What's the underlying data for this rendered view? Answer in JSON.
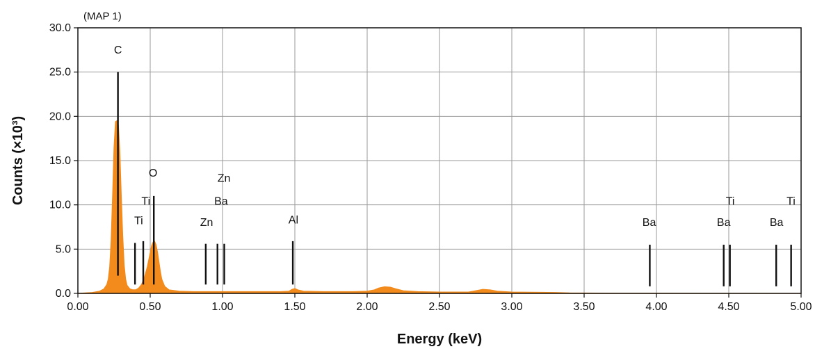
{
  "chart_data": {
    "type": "area",
    "map_label": "(MAP 1)",
    "xlabel": "Energy (keV)",
    "ylabel": "Counts (×10³)",
    "xlim": [
      0.0,
      5.0
    ],
    "ylim": [
      0.0,
      30.0
    ],
    "x_ticks": [
      "0.00",
      "0.50",
      "1.00",
      "1.50",
      "2.00",
      "2.50",
      "3.00",
      "3.50",
      "4.00",
      "4.50",
      "5.00"
    ],
    "y_ticks": [
      "0.0",
      "5.0",
      "10.0",
      "15.0",
      "20.0",
      "25.0",
      "30.0"
    ],
    "grid": true,
    "spectrum_color": "#f28a1c",
    "spectrum": {
      "x": [
        0.0,
        0.05,
        0.1,
        0.15,
        0.18,
        0.2,
        0.21,
        0.22,
        0.23,
        0.24,
        0.25,
        0.26,
        0.27,
        0.28,
        0.29,
        0.3,
        0.31,
        0.32,
        0.33,
        0.34,
        0.36,
        0.38,
        0.4,
        0.42,
        0.44,
        0.46,
        0.48,
        0.5,
        0.51,
        0.52,
        0.53,
        0.54,
        0.55,
        0.56,
        0.57,
        0.58,
        0.6,
        0.63,
        0.7,
        0.8,
        0.9,
        1.0,
        1.2,
        1.4,
        1.46,
        1.48,
        1.5,
        1.52,
        1.56,
        1.7,
        1.9,
        2.0,
        2.05,
        2.08,
        2.12,
        2.16,
        2.2,
        2.25,
        2.35,
        2.5,
        2.7,
        2.75,
        2.8,
        2.85,
        2.9,
        3.0,
        3.2,
        3.3,
        3.4,
        3.6,
        4.0,
        4.5,
        5.0
      ],
      "y": [
        0.0,
        0.05,
        0.1,
        0.25,
        0.5,
        1.0,
        1.6,
        3.0,
        6.0,
        11.0,
        16.5,
        19.4,
        19.5,
        19.0,
        16.0,
        11.0,
        6.5,
        3.2,
        1.6,
        0.9,
        0.5,
        0.4,
        0.4,
        0.6,
        1.0,
        1.8,
        3.0,
        4.6,
        5.4,
        5.8,
        5.9,
        5.5,
        4.7,
        3.6,
        2.5,
        1.6,
        0.8,
        0.4,
        0.25,
        0.2,
        0.2,
        0.2,
        0.2,
        0.2,
        0.25,
        0.45,
        0.55,
        0.4,
        0.25,
        0.2,
        0.2,
        0.25,
        0.4,
        0.6,
        0.75,
        0.7,
        0.5,
        0.3,
        0.2,
        0.15,
        0.15,
        0.3,
        0.45,
        0.4,
        0.25,
        0.15,
        0.12,
        0.1,
        0.05,
        0.03,
        0.02,
        0.01,
        0.0
      ]
    },
    "element_markers": [
      {
        "element": "C",
        "energy": 0.277,
        "top": 25.0,
        "bottom": 2.0
      },
      {
        "element": "Ti",
        "energy": 0.395,
        "top": 5.7,
        "bottom": 1.0
      },
      {
        "element": "Ti",
        "energy": 0.452,
        "top": 5.9,
        "bottom": 1.0
      },
      {
        "element": "O",
        "energy": 0.525,
        "top": 11.0,
        "bottom": 1.0
      },
      {
        "element": "Zn",
        "energy": 0.884,
        "top": 5.6,
        "bottom": 1.0
      },
      {
        "element": "Ba",
        "energy": 0.965,
        "top": 5.6,
        "bottom": 1.0
      },
      {
        "element": "Zn",
        "energy": 1.012,
        "top": 5.6,
        "bottom": 1.0
      },
      {
        "element": "Al",
        "energy": 1.486,
        "top": 5.9,
        "bottom": 1.0
      },
      {
        "element": "Ba",
        "energy": 3.954,
        "top": 5.5,
        "bottom": 0.8
      },
      {
        "element": "Ba",
        "energy": 4.465,
        "top": 5.5,
        "bottom": 0.8
      },
      {
        "element": "Ti",
        "energy": 4.508,
        "top": 5.5,
        "bottom": 0.8
      },
      {
        "element": "Ba",
        "energy": 4.828,
        "top": 5.5,
        "bottom": 0.8
      },
      {
        "element": "Ti",
        "energy": 4.931,
        "top": 5.5,
        "bottom": 0.8
      }
    ],
    "element_labels": [
      {
        "text": "C",
        "energy": 0.277,
        "y": 27.1
      },
      {
        "text": "Ti",
        "energy": 0.42,
        "y": 7.8
      },
      {
        "text": "Ti",
        "energy": 0.47,
        "y": 10.0
      },
      {
        "text": "O",
        "energy": 0.52,
        "y": 13.2
      },
      {
        "text": "Zn",
        "energy": 0.89,
        "y": 7.6
      },
      {
        "text": "Ba",
        "energy": 0.99,
        "y": 10.0
      },
      {
        "text": "Zn",
        "energy": 1.01,
        "y": 12.6
      },
      {
        "text": "Al",
        "energy": 1.49,
        "y": 7.9
      },
      {
        "text": "Ba",
        "energy": 3.95,
        "y": 7.6
      },
      {
        "text": "Ba",
        "energy": 4.465,
        "y": 7.6
      },
      {
        "text": "Ti",
        "energy": 4.51,
        "y": 10.0
      },
      {
        "text": "Ba",
        "energy": 4.83,
        "y": 7.6
      },
      {
        "text": "Ti",
        "energy": 4.93,
        "y": 10.0
      }
    ]
  }
}
